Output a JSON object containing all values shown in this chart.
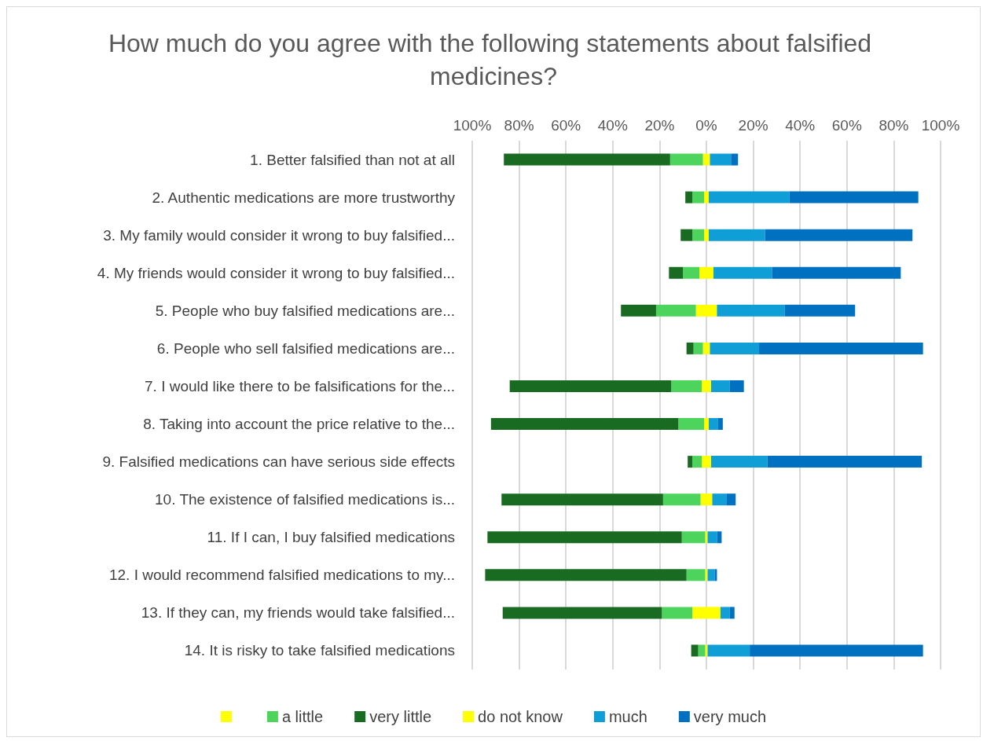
{
  "chart_data": {
    "type": "bar",
    "orientation": "horizontal",
    "stacked": true,
    "title": "How much do you agree with the following statements about falsified medicines?",
    "categories": [
      "1. Better falsified than not at all",
      "2. Authentic medications are more trustworthy",
      "3. My family would consider it wrong to buy falsified...",
      "4. My friends would consider it wrong to buy falsified...",
      "5. People who buy falsified medications are...",
      "6. People who sell falsified medications are...",
      "7. I would like there to be falsifications for the...",
      "8. Taking into account the price relative to the...",
      "9. Falsified medications can have serious side effects",
      "10. The existence of falsified medications is...",
      "11. If I can, I buy falsified medications",
      "12. I would recommend falsified medications to my...",
      "13. If they can, my friends would take falsified...",
      "14. It is risky to take falsified medications"
    ],
    "series": [
      {
        "color": "#ffff00",
        "values": [
          -1.5,
          -1,
          -1,
          -3,
          -4.5,
          -1.5,
          -2,
          -1,
          -2,
          -2.5,
          -0.5,
          -0.5,
          -6,
          -0.5
        ]
      },
      {
        "name": "a little",
        "color": "#4cd45c",
        "values": [
          -14,
          -5,
          -5,
          -7,
          -17,
          -4,
          -13,
          -11,
          -4,
          -16,
          -10,
          -8,
          -13,
          -3
        ]
      },
      {
        "name": "very little",
        "color": "#1a6b22",
        "values": [
          -71,
          -3,
          -5,
          -6,
          -15,
          -3,
          -69,
          -80,
          -2,
          -69,
          -83,
          -86,
          -68,
          -3
        ]
      },
      {
        "name": "do not know",
        "color": "#ffff00",
        "values": [
          1.5,
          1,
          1,
          3,
          4.5,
          1.5,
          2,
          1,
          2,
          2.5,
          0.5,
          0.5,
          6,
          0.5
        ]
      },
      {
        "name": "much",
        "color": "#0f9ed5",
        "values": [
          9,
          34.5,
          24,
          25,
          29,
          21,
          8,
          4,
          24,
          6,
          4,
          3,
          4,
          18
        ]
      },
      {
        "name": "very much",
        "color": "#0070c0",
        "values": [
          3,
          55,
          63,
          55,
          30,
          70,
          6,
          2,
          66,
          4,
          2,
          1,
          2,
          74
        ]
      }
    ],
    "xlim": [
      -100,
      100
    ],
    "xticks": [
      {
        "value": -100,
        "label": "100%"
      },
      {
        "value": -80,
        "label": "80%"
      },
      {
        "value": -60,
        "label": "60%"
      },
      {
        "value": -40,
        "label": "40%"
      },
      {
        "value": -20,
        "label": "20%"
      },
      {
        "value": 0,
        "label": "0%"
      },
      {
        "value": 20,
        "label": "20%"
      },
      {
        "value": 40,
        "label": "40%"
      },
      {
        "value": 60,
        "label": "60%"
      },
      {
        "value": 80,
        "label": "80%"
      },
      {
        "value": 100,
        "label": "100%"
      }
    ],
    "grid": "x",
    "legend": "bottom"
  }
}
